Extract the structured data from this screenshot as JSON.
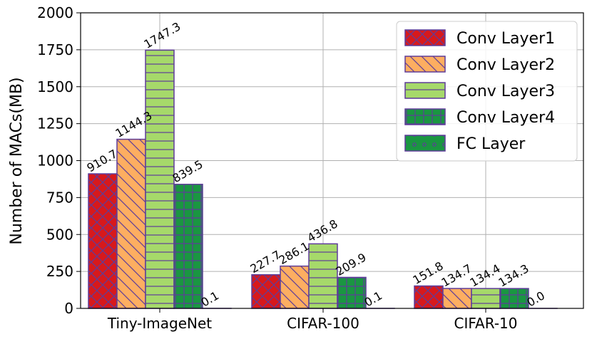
{
  "chart_data": {
    "type": "bar",
    "title": "",
    "xlabel": "",
    "ylabel": "Number of MACs(MB)",
    "ylim": [
      0,
      2000
    ],
    "yticks": [
      0,
      250,
      500,
      750,
      1000,
      1250,
      1500,
      1750,
      2000
    ],
    "grid": true,
    "legend_position": "top-right",
    "categories": [
      "Tiny-ImageNet",
      "CIFAR-100",
      "CIFAR-10"
    ],
    "series": [
      {
        "name": "Conv Layer1",
        "values": [
          910.7,
          227.7,
          151.8
        ],
        "labels": [
          "910.7",
          "227.7",
          "151.8"
        ],
        "color": "#d7191c",
        "hatch": "cross"
      },
      {
        "name": "Conv Layer2",
        "values": [
          1144.3,
          286.1,
          134.7
        ],
        "labels": [
          "1144.3",
          "286.1",
          "134.7"
        ],
        "color": "#fdae61",
        "hatch": "backslash"
      },
      {
        "name": "Conv Layer3",
        "values": [
          1747.3,
          436.8,
          134.4
        ],
        "labels": [
          "1747.3",
          "436.8",
          "134.4"
        ],
        "color": "#a6d96a",
        "hatch": "horizontal"
      },
      {
        "name": "Conv Layer4",
        "values": [
          839.5,
          209.9,
          134.3
        ],
        "labels": [
          "839.5",
          "209.9",
          "134.3"
        ],
        "color": "#1a9641",
        "hatch": "grid"
      },
      {
        "name": "FC Layer",
        "values": [
          0.1,
          0.1,
          0.0
        ],
        "labels": [
          "0.1",
          "0.1",
          "0.0"
        ],
        "color": "#1a9641",
        "hatch": "dots"
      }
    ],
    "edge_color": "#5e3c99"
  }
}
